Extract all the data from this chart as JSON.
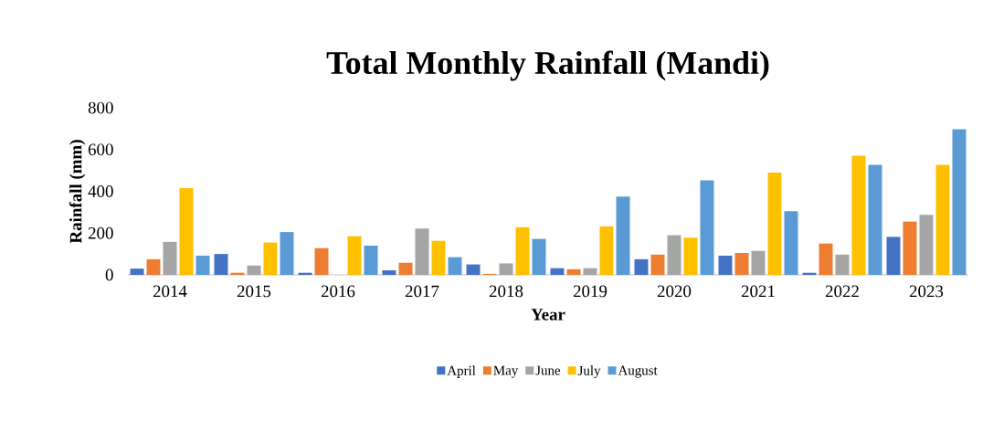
{
  "chart_data": {
    "type": "bar",
    "title": "Total Monthly Rainfall (Mandi)",
    "xlabel": "Year",
    "ylabel": "Rainfall (mm)",
    "categories": [
      "2014",
      "2015",
      "2016",
      "2017",
      "2018",
      "2019",
      "2020",
      "2021",
      "2022",
      "2023"
    ],
    "series": [
      {
        "name": "April",
        "color": "#4472c4",
        "values": [
          30,
          100,
          10,
          22,
          50,
          32,
          75,
          92,
          10,
          182
        ]
      },
      {
        "name": "May",
        "color": "#ed7d31",
        "values": [
          75,
          10,
          128,
          58,
          5,
          27,
          97,
          105,
          150,
          255
        ]
      },
      {
        "name": "June",
        "color": "#a5a5a5",
        "values": [
          158,
          45,
          0,
          222,
          55,
          32,
          190,
          115,
          97,
          287
        ]
      },
      {
        "name": "July",
        "color": "#ffc000",
        "values": [
          415,
          155,
          185,
          163,
          228,
          232,
          178,
          490,
          570,
          527
        ]
      },
      {
        "name": "August",
        "color": "#5b9bd5",
        "values": [
          92,
          205,
          140,
          85,
          172,
          375,
          452,
          305,
          527,
          697
        ]
      }
    ],
    "ylim": [
      0,
      800
    ],
    "yticks": [
      0,
      200,
      400,
      600,
      800
    ],
    "legend": "bottom"
  }
}
